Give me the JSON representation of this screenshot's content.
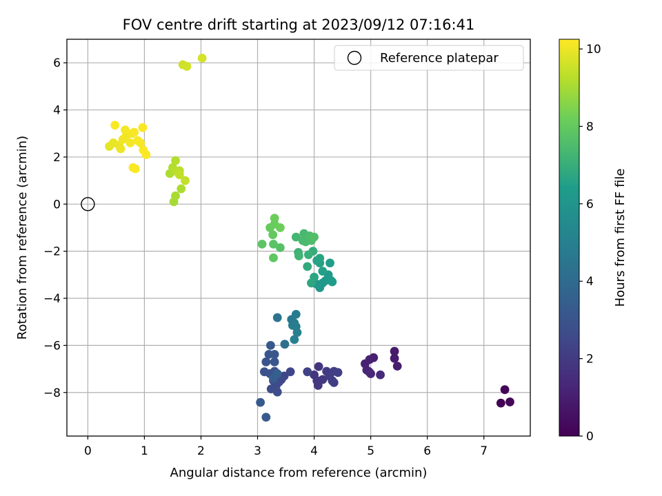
{
  "chart_data": {
    "type": "scatter",
    "title": "FOV centre drift starting at 2023/09/12 07:16:41",
    "xlabel": "Angular distance from reference (arcmin)",
    "ylabel": "Rotation from reference (arcmin)",
    "xlim": [
      -0.37,
      7.82
    ],
    "ylim": [
      -9.85,
      7.0
    ],
    "xticks": [
      0,
      1,
      2,
      3,
      4,
      5,
      6,
      7
    ],
    "xtick_labels": [
      "0",
      "1",
      "2",
      "3",
      "4",
      "5",
      "6",
      "7"
    ],
    "yticks": [
      -8,
      -6,
      -4,
      -2,
      0,
      2,
      4,
      6
    ],
    "ytick_labels": [
      "−8",
      "−6",
      "−4",
      "−2",
      "0",
      "2",
      "4",
      "6"
    ],
    "grid": true,
    "legend": {
      "position": "top-right",
      "entries": [
        {
          "label": "Reference platepar",
          "marker": "open-circle"
        }
      ]
    },
    "reference_point": {
      "x": 0,
      "y": 0
    },
    "colorbar": {
      "label": "Hours from first FF file",
      "colormap": "viridis",
      "range": [
        0,
        10.25
      ],
      "ticks": [
        0,
        2,
        4,
        6,
        8,
        10
      ],
      "tick_labels": [
        "0",
        "2",
        "4",
        "6",
        "8",
        "10"
      ]
    },
    "points": [
      {
        "x": 7.3,
        "y": -8.45,
        "c": 0.05
      },
      {
        "x": 7.37,
        "y": -7.88,
        "c": 0.1
      },
      {
        "x": 7.46,
        "y": -8.4,
        "c": 0.2
      },
      {
        "x": 5.42,
        "y": -6.25,
        "c": 0.85
      },
      {
        "x": 5.42,
        "y": -6.55,
        "c": 0.9
      },
      {
        "x": 5.47,
        "y": -6.88,
        "c": 0.95
      },
      {
        "x": 5.05,
        "y": -6.52,
        "c": 1.05
      },
      {
        "x": 4.98,
        "y": -6.6,
        "c": 1.1
      },
      {
        "x": 4.9,
        "y": -6.78,
        "c": 1.15
      },
      {
        "x": 4.93,
        "y": -7.05,
        "c": 1.2
      },
      {
        "x": 4.97,
        "y": -7.12,
        "c": 1.25
      },
      {
        "x": 5.0,
        "y": -7.2,
        "c": 1.3
      },
      {
        "x": 5.17,
        "y": -7.25,
        "c": 1.4
      },
      {
        "x": 4.08,
        "y": -6.9,
        "c": 1.75
      },
      {
        "x": 4.0,
        "y": -7.25,
        "c": 1.8
      },
      {
        "x": 4.05,
        "y": -7.5,
        "c": 1.85
      },
      {
        "x": 4.07,
        "y": -7.7,
        "c": 1.9
      },
      {
        "x": 4.15,
        "y": -7.45,
        "c": 1.95
      },
      {
        "x": 4.22,
        "y": -7.1,
        "c": 2.0
      },
      {
        "x": 4.27,
        "y": -7.3,
        "c": 2.05
      },
      {
        "x": 4.32,
        "y": -7.5,
        "c": 2.1
      },
      {
        "x": 4.35,
        "y": -7.58,
        "c": 2.12
      },
      {
        "x": 4.35,
        "y": -7.1,
        "c": 2.15
      },
      {
        "x": 4.42,
        "y": -7.15,
        "c": 2.2
      },
      {
        "x": 3.88,
        "y": -7.12,
        "c": 2.25
      },
      {
        "x": 3.58,
        "y": -7.12,
        "c": 2.4
      },
      {
        "x": 3.47,
        "y": -7.3,
        "c": 2.45
      },
      {
        "x": 3.42,
        "y": -7.45,
        "c": 2.5
      },
      {
        "x": 3.38,
        "y": -7.55,
        "c": 2.55
      },
      {
        "x": 3.33,
        "y": -7.7,
        "c": 2.6
      },
      {
        "x": 3.28,
        "y": -7.5,
        "c": 2.65
      },
      {
        "x": 3.24,
        "y": -7.85,
        "c": 2.7
      },
      {
        "x": 3.35,
        "y": -7.98,
        "c": 2.75
      },
      {
        "x": 3.28,
        "y": -7.3,
        "c": 2.8
      },
      {
        "x": 3.3,
        "y": -7.1,
        "c": 2.85
      },
      {
        "x": 3.22,
        "y": -7.2,
        "c": 2.9
      },
      {
        "x": 3.12,
        "y": -7.12,
        "c": 2.95
      },
      {
        "x": 3.15,
        "y": -6.7,
        "c": 3.0
      },
      {
        "x": 3.3,
        "y": -6.7,
        "c": 3.05
      },
      {
        "x": 3.2,
        "y": -6.38,
        "c": 3.1
      },
      {
        "x": 3.3,
        "y": -6.38,
        "c": 3.15
      },
      {
        "x": 3.23,
        "y": -6.0,
        "c": 3.2
      },
      {
        "x": 3.05,
        "y": -8.42,
        "c": 3.25
      },
      {
        "x": 3.15,
        "y": -9.05,
        "c": 3.3
      },
      {
        "x": 3.28,
        "y": -7.4,
        "c": 3.4
      },
      {
        "x": 3.35,
        "y": -7.2,
        "c": 3.5
      },
      {
        "x": 3.48,
        "y": -5.95,
        "c": 4.2
      },
      {
        "x": 3.35,
        "y": -4.82,
        "c": 4.4
      },
      {
        "x": 3.6,
        "y": -4.9,
        "c": 4.6
      },
      {
        "x": 3.65,
        "y": -5.05,
        "c": 4.7
      },
      {
        "x": 3.68,
        "y": -4.68,
        "c": 4.8
      },
      {
        "x": 3.62,
        "y": -5.15,
        "c": 4.85
      },
      {
        "x": 3.68,
        "y": -5.2,
        "c": 4.9
      },
      {
        "x": 3.7,
        "y": -5.45,
        "c": 4.95
      },
      {
        "x": 3.65,
        "y": -5.75,
        "c": 5.0
      },
      {
        "x": 4.0,
        "y": -3.35,
        "c": 6.0
      },
      {
        "x": 4.05,
        "y": -3.4,
        "c": 6.05
      },
      {
        "x": 4.1,
        "y": -3.55,
        "c": 6.1
      },
      {
        "x": 4.15,
        "y": -3.35,
        "c": 6.15
      },
      {
        "x": 4.2,
        "y": -3.25,
        "c": 6.2
      },
      {
        "x": 4.25,
        "y": -3.0,
        "c": 6.25
      },
      {
        "x": 4.3,
        "y": -3.25,
        "c": 6.3
      },
      {
        "x": 4.32,
        "y": -3.3,
        "c": 6.35
      },
      {
        "x": 4.28,
        "y": -2.5,
        "c": 6.45
      },
      {
        "x": 4.15,
        "y": -2.85,
        "c": 6.5
      },
      {
        "x": 4.1,
        "y": -2.5,
        "c": 6.55
      },
      {
        "x": 4.05,
        "y": -2.4,
        "c": 6.6
      },
      {
        "x": 4.1,
        "y": -2.3,
        "c": 6.65
      },
      {
        "x": 4.0,
        "y": -3.1,
        "c": 6.7
      },
      {
        "x": 3.95,
        "y": -3.35,
        "c": 6.75
      },
      {
        "x": 3.88,
        "y": -2.65,
        "c": 6.85
      },
      {
        "x": 3.98,
        "y": -2.0,
        "c": 6.95
      },
      {
        "x": 3.9,
        "y": -2.15,
        "c": 7.05
      },
      {
        "x": 3.72,
        "y": -2.05,
        "c": 7.15
      },
      {
        "x": 3.73,
        "y": -2.2,
        "c": 7.2
      },
      {
        "x": 3.68,
        "y": -1.4,
        "c": 7.3
      },
      {
        "x": 3.82,
        "y": -1.25,
        "c": 7.35
      },
      {
        "x": 3.8,
        "y": -1.55,
        "c": 7.4
      },
      {
        "x": 3.85,
        "y": -1.6,
        "c": 7.45
      },
      {
        "x": 3.92,
        "y": -1.35,
        "c": 7.5
      },
      {
        "x": 3.95,
        "y": -1.55,
        "c": 7.55
      },
      {
        "x": 4.0,
        "y": -1.4,
        "c": 7.6
      },
      {
        "x": 3.4,
        "y": -1.85,
        "c": 7.7
      },
      {
        "x": 3.28,
        "y": -1.7,
        "c": 7.8
      },
      {
        "x": 3.08,
        "y": -1.7,
        "c": 7.85
      },
      {
        "x": 3.28,
        "y": -2.28,
        "c": 7.9
      },
      {
        "x": 3.27,
        "y": -1.3,
        "c": 8.0
      },
      {
        "x": 3.22,
        "y": -1.0,
        "c": 8.05
      },
      {
        "x": 3.3,
        "y": -0.85,
        "c": 8.1
      },
      {
        "x": 3.3,
        "y": -0.6,
        "c": 8.15
      },
      {
        "x": 3.4,
        "y": -1.0,
        "c": 8.2
      },
      {
        "x": 1.52,
        "y": 0.1,
        "c": 9.0
      },
      {
        "x": 1.55,
        "y": 0.35,
        "c": 9.05
      },
      {
        "x": 1.65,
        "y": 0.65,
        "c": 9.1
      },
      {
        "x": 1.45,
        "y": 1.3,
        "c": 9.1
      },
      {
        "x": 1.5,
        "y": 1.55,
        "c": 9.15
      },
      {
        "x": 1.55,
        "y": 1.85,
        "c": 9.2
      },
      {
        "x": 1.55,
        "y": 1.4,
        "c": 9.25
      },
      {
        "x": 1.62,
        "y": 1.42,
        "c": 9.3
      },
      {
        "x": 1.62,
        "y": 1.25,
        "c": 9.35
      },
      {
        "x": 1.72,
        "y": 1.0,
        "c": 9.4
      },
      {
        "x": 1.68,
        "y": 5.92,
        "c": 9.55
      },
      {
        "x": 1.75,
        "y": 5.85,
        "c": 9.6
      },
      {
        "x": 2.02,
        "y": 6.2,
        "c": 9.65
      },
      {
        "x": 0.38,
        "y": 2.45,
        "c": 9.9
      },
      {
        "x": 0.45,
        "y": 2.6,
        "c": 9.95
      },
      {
        "x": 0.55,
        "y": 2.5,
        "c": 10.0
      },
      {
        "x": 0.58,
        "y": 2.35,
        "c": 10.0
      },
      {
        "x": 0.62,
        "y": 2.75,
        "c": 10.05
      },
      {
        "x": 0.68,
        "y": 2.9,
        "c": 10.05
      },
      {
        "x": 0.66,
        "y": 3.15,
        "c": 10.1
      },
      {
        "x": 0.75,
        "y": 2.6,
        "c": 10.1
      },
      {
        "x": 0.78,
        "y": 3.0,
        "c": 10.1
      },
      {
        "x": 0.82,
        "y": 3.05,
        "c": 10.15
      },
      {
        "x": 0.88,
        "y": 2.7,
        "c": 10.15
      },
      {
        "x": 0.93,
        "y": 2.6,
        "c": 10.15
      },
      {
        "x": 0.97,
        "y": 3.25,
        "c": 10.2
      },
      {
        "x": 0.98,
        "y": 2.3,
        "c": 10.2
      },
      {
        "x": 1.03,
        "y": 2.1,
        "c": 10.2
      },
      {
        "x": 0.48,
        "y": 3.35,
        "c": 10.2
      },
      {
        "x": 0.8,
        "y": 1.55,
        "c": 10.2
      },
      {
        "x": 0.84,
        "y": 1.5,
        "c": 10.2
      }
    ]
  }
}
